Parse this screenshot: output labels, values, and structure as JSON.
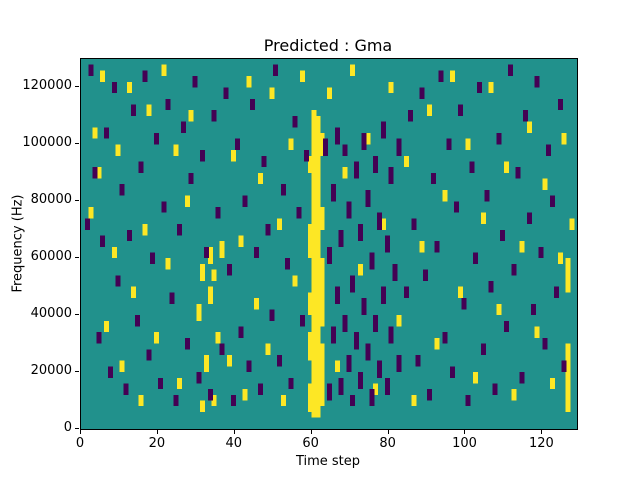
{
  "figure": {
    "background": "#ffffff"
  },
  "chart_data": {
    "type": "heatmap",
    "title": "Predicted : Gma",
    "xlabel": "Time step",
    "ylabel": "Frequency (Hz)",
    "xlim": [
      0,
      129
    ],
    "ylim": [
      0,
      130000
    ],
    "xticks": [
      0,
      20,
      40,
      60,
      80,
      100,
      120
    ],
    "yticks": [
      0,
      20000,
      40000,
      60000,
      80000,
      100000,
      120000
    ],
    "grid": false,
    "legend": "none",
    "colormap": {
      "background": "#21918c",
      "high": "#fde725",
      "low": "#440154"
    },
    "cell": {
      "t_width": 1.3,
      "f_unit": 2000
    },
    "yellow_runs": [
      [
        59,
        6000,
        16000
      ],
      [
        59,
        24000,
        34000
      ],
      [
        59,
        40000,
        48000
      ],
      [
        59,
        60000,
        72000
      ],
      [
        59,
        90000,
        96000
      ],
      [
        60,
        4000,
        112000
      ],
      [
        61,
        4000,
        110000
      ],
      [
        62,
        8000,
        30000
      ],
      [
        62,
        36000,
        60000
      ],
      [
        62,
        70000,
        78000
      ],
      [
        62,
        96000,
        104000
      ],
      [
        126,
        6000,
        30000
      ],
      [
        126,
        48000,
        60000
      ],
      [
        127,
        70000,
        74000
      ],
      [
        30,
        38000,
        44000
      ],
      [
        31,
        6000,
        10000
      ],
      [
        31,
        52000,
        58000
      ],
      [
        32,
        20000,
        26000
      ],
      [
        33,
        44000,
        50000
      ],
      [
        33,
        58000,
        64000
      ],
      [
        34,
        8000,
        12000
      ],
      [
        34,
        52000,
        56000
      ],
      [
        35,
        30000,
        34000
      ],
      [
        36,
        60000,
        66000
      ],
      [
        2,
        74000,
        78000
      ],
      [
        3,
        102000,
        106000
      ],
      [
        4,
        88000,
        92000
      ],
      [
        5,
        122000,
        126000
      ],
      [
        6,
        34000,
        38000
      ],
      [
        8,
        60000,
        64000
      ],
      [
        9,
        96000,
        100000
      ],
      [
        10,
        20000,
        24000
      ],
      [
        12,
        118000,
        122000
      ],
      [
        13,
        46000,
        50000
      ],
      [
        15,
        8000,
        12000
      ],
      [
        16,
        68000,
        72000
      ],
      [
        17,
        110000,
        114000
      ],
      [
        19,
        30000,
        34000
      ],
      [
        21,
        124000,
        128000
      ],
      [
        22,
        56000,
        60000
      ],
      [
        24,
        96000,
        100000
      ],
      [
        25,
        14000,
        18000
      ],
      [
        27,
        78000,
        82000
      ],
      [
        28,
        108000,
        112000
      ],
      [
        38,
        22000,
        26000
      ],
      [
        39,
        94000,
        98000
      ],
      [
        41,
        64000,
        68000
      ],
      [
        42,
        10000,
        14000
      ],
      [
        43,
        120000,
        124000
      ],
      [
        45,
        42000,
        46000
      ],
      [
        46,
        86000,
        90000
      ],
      [
        48,
        26000,
        30000
      ],
      [
        49,
        116000,
        120000
      ],
      [
        51,
        70000,
        74000
      ],
      [
        52,
        8000,
        12000
      ],
      [
        54,
        98000,
        102000
      ],
      [
        55,
        50000,
        54000
      ],
      [
        57,
        122000,
        126000
      ],
      [
        64,
        116000,
        120000
      ],
      [
        66,
        20000,
        24000
      ],
      [
        68,
        88000,
        92000
      ],
      [
        70,
        124000,
        128000
      ],
      [
        72,
        54000,
        58000
      ],
      [
        74,
        100000,
        104000
      ],
      [
        76,
        12000,
        16000
      ],
      [
        78,
        70000,
        74000
      ],
      [
        80,
        118000,
        122000
      ],
      [
        82,
        36000,
        40000
      ],
      [
        84,
        92000,
        96000
      ],
      [
        86,
        8000,
        12000
      ],
      [
        88,
        62000,
        66000
      ],
      [
        90,
        110000,
        114000
      ],
      [
        92,
        28000,
        32000
      ],
      [
        94,
        80000,
        84000
      ],
      [
        96,
        122000,
        126000
      ],
      [
        98,
        46000,
        50000
      ],
      [
        100,
        98000,
        102000
      ],
      [
        102,
        16000,
        20000
      ],
      [
        104,
        72000,
        76000
      ],
      [
        106,
        118000,
        122000
      ],
      [
        108,
        40000,
        44000
      ],
      [
        110,
        90000,
        94000
      ],
      [
        112,
        10000,
        14000
      ],
      [
        114,
        62000,
        66000
      ],
      [
        116,
        104000,
        108000
      ],
      [
        118,
        32000,
        36000
      ],
      [
        120,
        84000,
        88000
      ],
      [
        122,
        14000,
        18000
      ],
      [
        124,
        58000,
        62000
      ],
      [
        125,
        100000,
        104000
      ]
    ],
    "purple_runs": [
      [
        63,
        96000,
        102000
      ],
      [
        64,
        10000,
        16000
      ],
      [
        64,
        58000,
        64000
      ],
      [
        65,
        30000,
        36000
      ],
      [
        65,
        80000,
        86000
      ],
      [
        66,
        100000,
        106000
      ],
      [
        66,
        44000,
        50000
      ],
      [
        67,
        12000,
        18000
      ],
      [
        67,
        64000,
        70000
      ],
      [
        68,
        34000,
        40000
      ],
      [
        68,
        96000,
        100000
      ],
      [
        69,
        20000,
        26000
      ],
      [
        69,
        74000,
        80000
      ],
      [
        70,
        48000,
        54000
      ],
      [
        70,
        8000,
        12000
      ],
      [
        71,
        88000,
        94000
      ],
      [
        71,
        28000,
        34000
      ],
      [
        72,
        14000,
        20000
      ],
      [
        72,
        66000,
        72000
      ],
      [
        73,
        40000,
        46000
      ],
      [
        73,
        98000,
        104000
      ],
      [
        74,
        24000,
        30000
      ],
      [
        74,
        78000,
        84000
      ],
      [
        75,
        8000,
        14000
      ],
      [
        75,
        56000,
        62000
      ],
      [
        76,
        90000,
        96000
      ],
      [
        76,
        34000,
        40000
      ],
      [
        77,
        18000,
        24000
      ],
      [
        77,
        70000,
        76000
      ],
      [
        78,
        44000,
        50000
      ],
      [
        78,
        102000,
        108000
      ],
      [
        79,
        12000,
        18000
      ],
      [
        79,
        62000,
        68000
      ],
      [
        80,
        30000,
        36000
      ],
      [
        80,
        86000,
        92000
      ],
      [
        81,
        52000,
        58000
      ],
      [
        82,
        20000,
        26000
      ],
      [
        82,
        96000,
        102000
      ],
      [
        1,
        70000,
        74000
      ],
      [
        2,
        124000,
        128000
      ],
      [
        3,
        88000,
        92000
      ],
      [
        4,
        30000,
        34000
      ],
      [
        5,
        64000,
        68000
      ],
      [
        6,
        102000,
        106000
      ],
      [
        7,
        18000,
        22000
      ],
      [
        8,
        118000,
        122000
      ],
      [
        9,
        50000,
        54000
      ],
      [
        10,
        82000,
        86000
      ],
      [
        11,
        12000,
        16000
      ],
      [
        12,
        66000,
        70000
      ],
      [
        13,
        110000,
        114000
      ],
      [
        14,
        36000,
        40000
      ],
      [
        15,
        90000,
        94000
      ],
      [
        16,
        122000,
        126000
      ],
      [
        17,
        24000,
        28000
      ],
      [
        18,
        58000,
        62000
      ],
      [
        19,
        100000,
        104000
      ],
      [
        20,
        14000,
        18000
      ],
      [
        21,
        76000,
        80000
      ],
      [
        22,
        112000,
        116000
      ],
      [
        23,
        44000,
        48000
      ],
      [
        24,
        8000,
        12000
      ],
      [
        25,
        68000,
        72000
      ],
      [
        26,
        104000,
        108000
      ],
      [
        27,
        28000,
        32000
      ],
      [
        28,
        86000,
        90000
      ],
      [
        29,
        120000,
        124000
      ],
      [
        30,
        16000,
        20000
      ],
      [
        31,
        94000,
        98000
      ],
      [
        32,
        60000,
        64000
      ],
      [
        33,
        10000,
        14000
      ],
      [
        34,
        108000,
        112000
      ],
      [
        35,
        74000,
        78000
      ],
      [
        36,
        26000,
        30000
      ],
      [
        37,
        116000,
        120000
      ],
      [
        38,
        54000,
        58000
      ],
      [
        39,
        8000,
        12000
      ],
      [
        40,
        98000,
        102000
      ],
      [
        41,
        32000,
        36000
      ],
      [
        42,
        78000,
        82000
      ],
      [
        43,
        20000,
        24000
      ],
      [
        44,
        112000,
        116000
      ],
      [
        45,
        60000,
        64000
      ],
      [
        46,
        12000,
        16000
      ],
      [
        47,
        92000,
        96000
      ],
      [
        48,
        68000,
        72000
      ],
      [
        49,
        38000,
        42000
      ],
      [
        50,
        124000,
        128000
      ],
      [
        51,
        22000,
        26000
      ],
      [
        52,
        82000,
        86000
      ],
      [
        53,
        56000,
        60000
      ],
      [
        54,
        14000,
        18000
      ],
      [
        55,
        106000,
        110000
      ],
      [
        56,
        74000,
        78000
      ],
      [
        57,
        36000,
        40000
      ],
      [
        58,
        94000,
        98000
      ],
      [
        84,
        46000,
        50000
      ],
      [
        85,
        108000,
        112000
      ],
      [
        86,
        70000,
        74000
      ],
      [
        87,
        22000,
        26000
      ],
      [
        88,
        116000,
        120000
      ],
      [
        89,
        52000,
        56000
      ],
      [
        90,
        10000,
        14000
      ],
      [
        91,
        86000,
        90000
      ],
      [
        92,
        62000,
        66000
      ],
      [
        93,
        122000,
        126000
      ],
      [
        94,
        30000,
        34000
      ],
      [
        95,
        98000,
        102000
      ],
      [
        96,
        18000,
        22000
      ],
      [
        97,
        76000,
        80000
      ],
      [
        98,
        110000,
        114000
      ],
      [
        99,
        42000,
        46000
      ],
      [
        100,
        8000,
        12000
      ],
      [
        101,
        90000,
        94000
      ],
      [
        102,
        58000,
        62000
      ],
      [
        103,
        118000,
        122000
      ],
      [
        104,
        26000,
        30000
      ],
      [
        105,
        80000,
        84000
      ],
      [
        106,
        48000,
        52000
      ],
      [
        107,
        12000,
        16000
      ],
      [
        108,
        100000,
        104000
      ],
      [
        109,
        66000,
        70000
      ],
      [
        110,
        34000,
        38000
      ],
      [
        111,
        124000,
        128000
      ],
      [
        112,
        54000,
        58000
      ],
      [
        113,
        88000,
        92000
      ],
      [
        114,
        16000,
        20000
      ],
      [
        115,
        108000,
        112000
      ],
      [
        116,
        72000,
        76000
      ],
      [
        117,
        40000,
        44000
      ],
      [
        118,
        120000,
        124000
      ],
      [
        119,
        60000,
        64000
      ],
      [
        120,
        28000,
        32000
      ],
      [
        121,
        96000,
        100000
      ],
      [
        122,
        78000,
        82000
      ],
      [
        123,
        46000,
        50000
      ],
      [
        124,
        112000,
        116000
      ],
      [
        125,
        20000,
        24000
      ]
    ]
  }
}
